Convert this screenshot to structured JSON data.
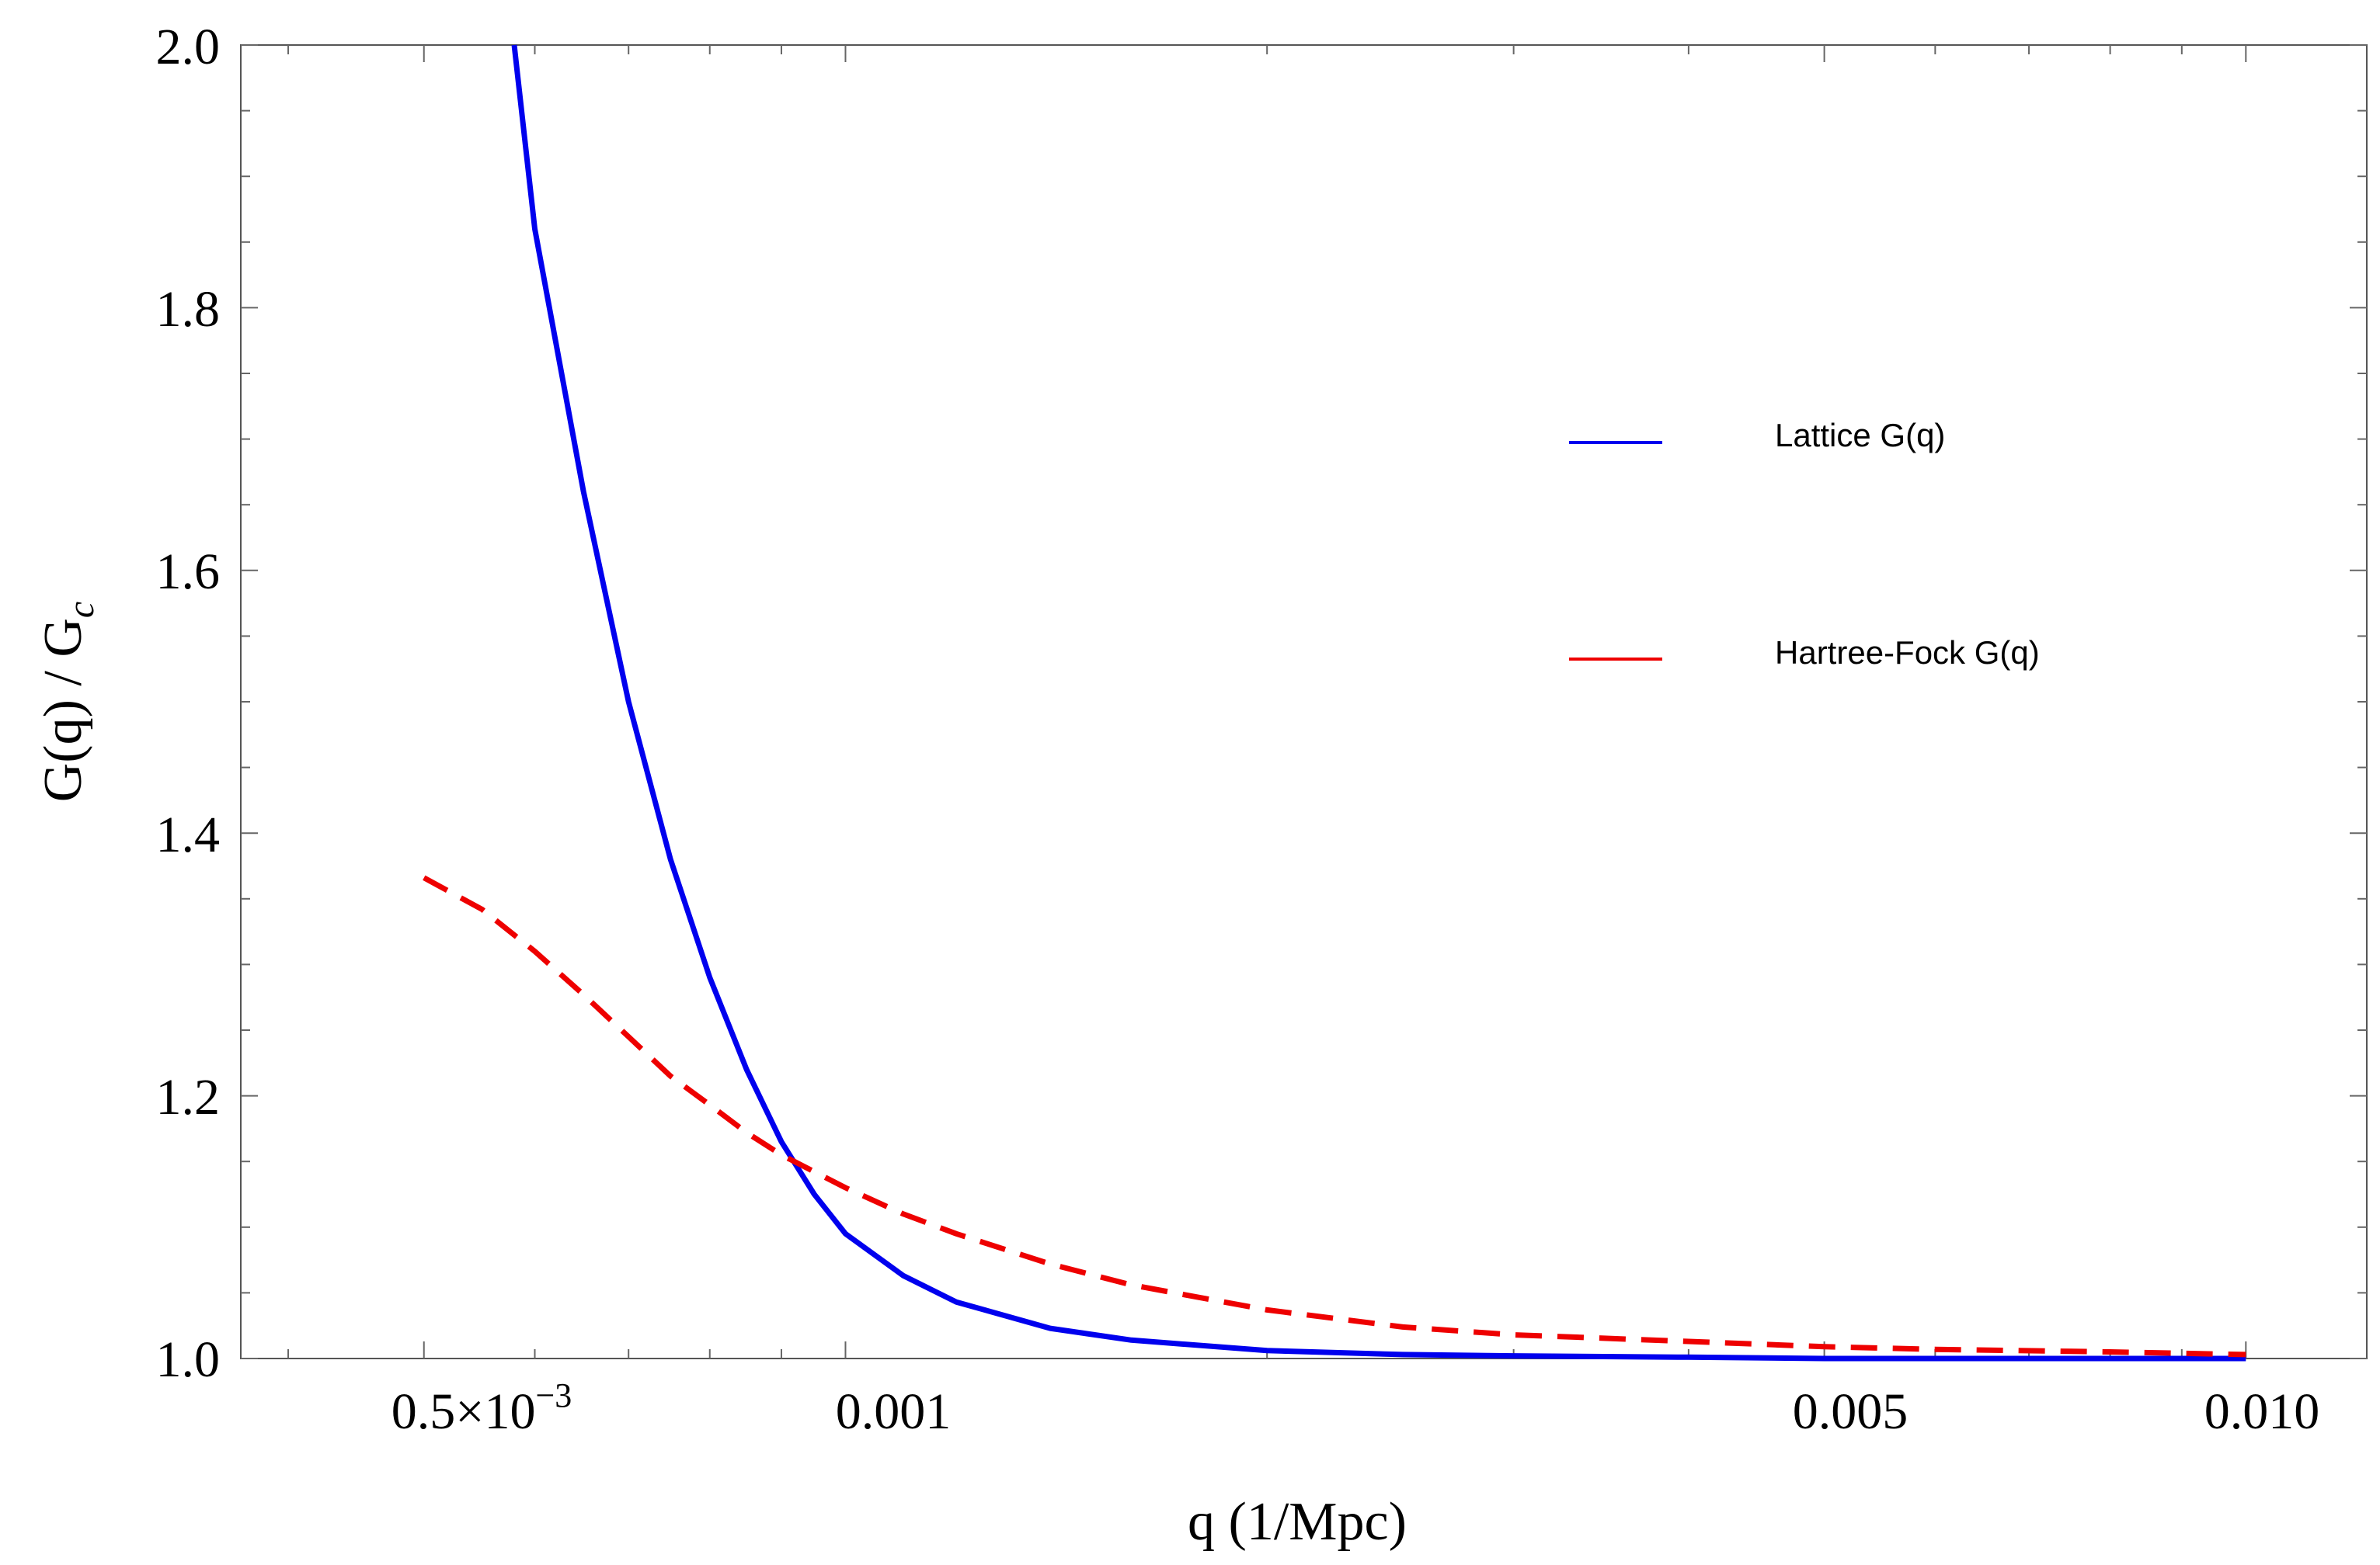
{
  "chart_data": {
    "type": "line",
    "xscale": "log",
    "xlim": [
      0.00037,
      0.0122
    ],
    "ylim": [
      1.0,
      2.0
    ],
    "xlabel": "q (1/Mpc)",
    "ylabel": "G(q) / G",
    "ylabel_subscript": "c",
    "y_ticks": [
      {
        "value": 1.0,
        "label": "1.0"
      },
      {
        "value": 1.2,
        "label": "1.2"
      },
      {
        "value": 1.4,
        "label": "1.4"
      },
      {
        "value": 1.6,
        "label": "1.6"
      },
      {
        "value": 1.8,
        "label": "1.8"
      },
      {
        "value": 2.0,
        "label": "2.0"
      }
    ],
    "x_ticks": [
      {
        "value": 0.0005,
        "label_main": "0.5×10",
        "label_exp": "−3"
      },
      {
        "value": 0.001,
        "label_main": "0.001",
        "label_exp": ""
      },
      {
        "value": 0.005,
        "label_main": "0.005",
        "label_exp": ""
      },
      {
        "value": 0.01,
        "label_main": "0.010",
        "label_exp": ""
      }
    ],
    "series": [
      {
        "name": "Lattice G(q)",
        "color": "#0000ee",
        "dash": "solid",
        "x": [
          0.00058,
          0.0006,
          0.00065,
          0.0007,
          0.00075,
          0.0008,
          0.00085,
          0.0009,
          0.00095,
          0.001,
          0.0011,
          0.0012,
          0.0014,
          0.0016,
          0.002,
          0.0025,
          0.003,
          0.004,
          0.005,
          0.006,
          0.008,
          0.01
        ],
        "y": [
          2.0,
          1.86,
          1.66,
          1.5,
          1.38,
          1.29,
          1.22,
          1.165,
          1.125,
          1.095,
          1.063,
          1.043,
          1.023,
          1.014,
          1.006,
          1.003,
          1.002,
          1.001,
          1.0,
          1.0,
          1.0,
          1.0
        ]
      },
      {
        "name": "Hartree-Fock G(q)",
        "color": "#ee0000",
        "dash": "dashed",
        "x": [
          0.0005,
          0.00055,
          0.0006,
          0.00065,
          0.0007,
          0.00075,
          0.0008,
          0.00085,
          0.0009,
          0.001,
          0.0011,
          0.0012,
          0.0014,
          0.0016,
          0.002,
          0.0025,
          0.003,
          0.004,
          0.005,
          0.006,
          0.008,
          0.01
        ],
        "y": [
          1.366,
          1.342,
          1.31,
          1.277,
          1.245,
          1.215,
          1.193,
          1.172,
          1.155,
          1.13,
          1.11,
          1.095,
          1.072,
          1.056,
          1.037,
          1.024,
          1.018,
          1.013,
          1.009,
          1.007,
          1.005,
          1.003
        ]
      }
    ]
  }
}
